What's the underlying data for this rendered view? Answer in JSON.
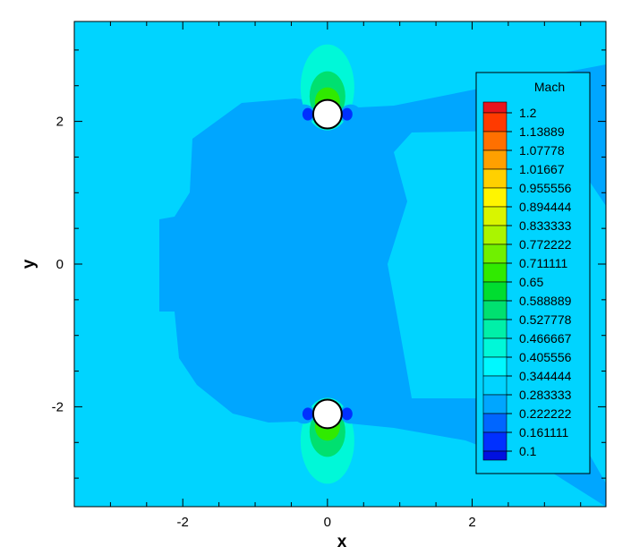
{
  "chart_data": {
    "type": "contour",
    "xlabel": "x",
    "ylabel": "y",
    "xlim": [
      -3.5,
      3.85
    ],
    "ylim": [
      -3.4,
      3.4
    ],
    "x_ticks": [
      {
        "value": -2,
        "label": "-2"
      },
      {
        "value": 0,
        "label": "0"
      },
      {
        "value": 2,
        "label": "2"
      }
    ],
    "y_ticks": [
      {
        "value": -2,
        "label": "-2"
      },
      {
        "value": 0,
        "label": "0"
      },
      {
        "value": 2,
        "label": "2"
      }
    ],
    "legend": {
      "title": "Mach",
      "placement": "right",
      "levels": [
        {
          "label": "1.2",
          "color": "#e8141c"
        },
        {
          "label": "1.13889",
          "color": "#ff3a00"
        },
        {
          "label": "1.07778",
          "color": "#ff7000"
        },
        {
          "label": "1.01667",
          "color": "#ffa000"
        },
        {
          "label": "0.955556",
          "color": "#ffd000"
        },
        {
          "label": "0.894444",
          "color": "#fff500"
        },
        {
          "label": "0.833333",
          "color": "#d9f500"
        },
        {
          "label": "0.772222",
          "color": "#aaf500"
        },
        {
          "label": "0.711111",
          "color": "#70f000"
        },
        {
          "label": "0.65",
          "color": "#30ea00"
        },
        {
          "label": "0.588889",
          "color": "#00dd30"
        },
        {
          "label": "0.527778",
          "color": "#00e070"
        },
        {
          "label": "0.466667",
          "color": "#00f0a8"
        },
        {
          "label": "0.405556",
          "color": "#00f8d8"
        },
        {
          "label": "0.344444",
          "color": "#00f8ff"
        },
        {
          "label": "0.283333",
          "color": "#00d4ff"
        },
        {
          "label": "0.222222",
          "color": "#00a6ff"
        },
        {
          "label": "0.161111",
          "color": "#0066ff"
        },
        {
          "label": "0.1",
          "color": "#0030ff"
        }
      ],
      "bottom_color": "#0010e0"
    },
    "cylinders": [
      {
        "x": 0,
        "y": 2.1,
        "r": 0.2
      },
      {
        "x": 0,
        "y": -2.1,
        "r": 0.2
      }
    ],
    "field_colors": {
      "background": "#00d4ff",
      "wake": "#00a6ff",
      "near_body": "#00f8d8",
      "jet_core": "#00e070",
      "accel": "#30ea00",
      "stagnation": "#0030ff"
    }
  }
}
